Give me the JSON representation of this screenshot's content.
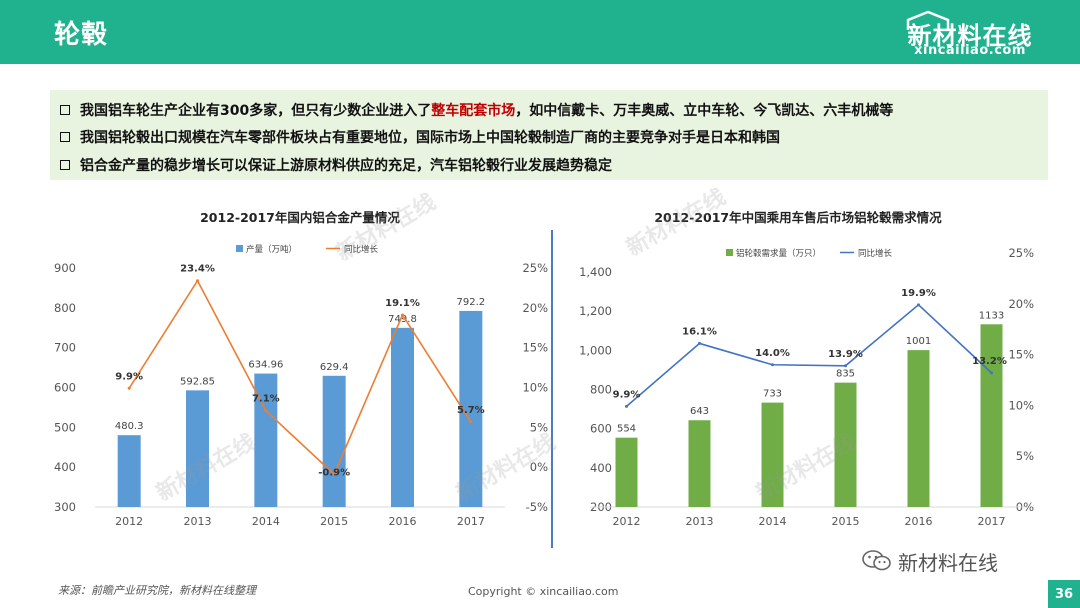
{
  "header": {
    "title": "轮毂"
  },
  "logo": {
    "cn": "新材料在线",
    "en": "xincailiao.com"
  },
  "bullets": [
    {
      "pre": "我国铝车轮生产企业有300多家，但只有少数企业进入了",
      "highlight": "整车配套市场",
      "post": "，如中信戴卡、万丰奥威、立中车轮、今飞凯达、六丰机械等"
    },
    {
      "pre": "我国铝轮毂出口规模在汽车零部件板块占有重要地位，国际市场上中国轮毂制造厂商的主要竞争对手是日本和韩国",
      "highlight": "",
      "post": ""
    },
    {
      "pre": "铝合金产量的稳步增长可以保证上游原材料供应的充足，汽车铝轮毂行业发展趋势稳定",
      "highlight": "",
      "post": ""
    }
  ],
  "colors": {
    "header": "#20b28f",
    "bar1": "#5b9bd5",
    "line1": "#ed7d31",
    "bar2": "#70ad47",
    "line2": "#4472c4",
    "highlight": "#c00000"
  },
  "chart_data": [
    {
      "type": "bar",
      "title": "2012-2017年国内铝合金产量情况",
      "categories": [
        "2012",
        "2013",
        "2014",
        "2015",
        "2016",
        "2017"
      ],
      "series": [
        {
          "name": "产量（万吨）",
          "kind": "bar",
          "axis": "left",
          "values": [
            480.3,
            592.85,
            634.96,
            629.4,
            749.8,
            792.2
          ],
          "labels": [
            "480.3",
            "592.85",
            "634.96",
            "629.4",
            "749.8",
            "792.2"
          ]
        },
        {
          "name": "同比增长",
          "kind": "line",
          "axis": "right",
          "values": [
            9.9,
            23.4,
            7.1,
            -0.9,
            19.1,
            5.7
          ],
          "labels": [
            "9.9%",
            "23.4%",
            "7.1%",
            "-0.9%",
            "19.1%",
            "5.7%"
          ]
        }
      ],
      "y_left": {
        "min": 300,
        "max": 900,
        "ticks": [
          "300",
          "400",
          "500",
          "600",
          "700",
          "800",
          "900"
        ]
      },
      "y_right": {
        "min": -5,
        "max": 25,
        "ticks": [
          "-5%",
          "0%",
          "5%",
          "10%",
          "15%",
          "20%",
          "25%"
        ]
      },
      "grid": false,
      "legend": "top"
    },
    {
      "type": "bar",
      "title": "2012-2017年中国乘用车售后市场铝轮毂需求情况",
      "categories": [
        "2012",
        "2013",
        "2014",
        "2015",
        "2016",
        "2017"
      ],
      "series": [
        {
          "name": "铝轮毂需求量（万只）",
          "kind": "bar",
          "axis": "left",
          "values": [
            554,
            643,
            733,
            835,
            1001,
            1133
          ],
          "labels": [
            "554",
            "643",
            "733",
            "835",
            "1001",
            "1133"
          ]
        },
        {
          "name": "同比增长",
          "kind": "line",
          "axis": "right",
          "values": [
            9.9,
            16.1,
            14.0,
            13.9,
            19.9,
            13.2
          ],
          "labels": [
            "9.9%",
            "16.1%",
            "14.0%",
            "13.9%",
            "19.9%",
            "13.2%"
          ]
        }
      ],
      "y_left": {
        "min": 200,
        "max": 1400,
        "ticks": [
          "200",
          "400",
          "600",
          "800",
          "1,000",
          "1,200",
          "1,400"
        ]
      },
      "y_right": {
        "min": 0,
        "max": 25,
        "ticks": [
          "0%",
          "5%",
          "10%",
          "15%",
          "20%",
          "25%"
        ]
      },
      "grid": false,
      "legend": "top"
    }
  ],
  "footer": {
    "source": "来源：前瞻产业研究院，新材料在线整理",
    "copyright": "Copyright © xincailiao.com",
    "wechat": "新材料在线",
    "page": "36"
  }
}
